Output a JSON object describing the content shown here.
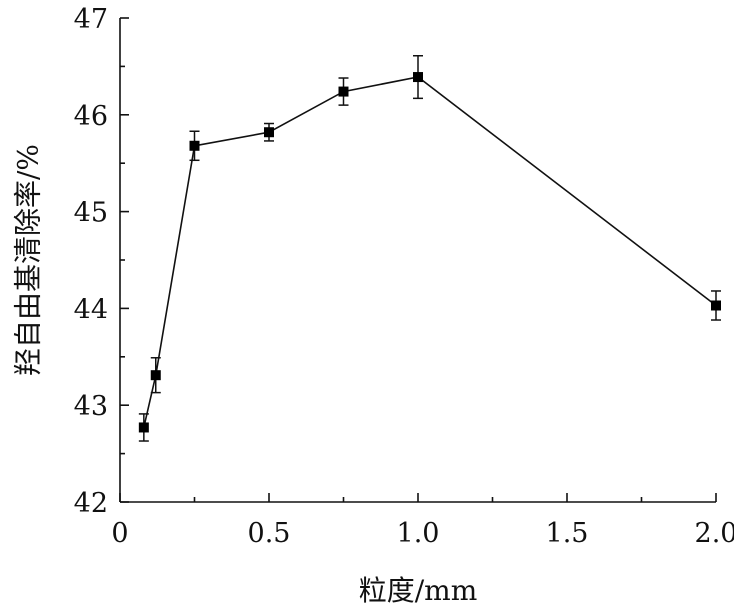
{
  "chart_data": {
    "type": "line",
    "title": "",
    "xlabel": "粒度/mm",
    "ylabel": "羟自由基清除率/%",
    "xlim": [
      0,
      2.0
    ],
    "ylim": [
      42,
      47
    ],
    "xticks": [
      0,
      0.5,
      1.0,
      1.5,
      2.0
    ],
    "xtick_labels": [
      "0",
      "0.5",
      "1.0",
      "1.5",
      "2.0"
    ],
    "yticks": [
      42,
      43,
      44,
      45,
      46,
      47
    ],
    "ytick_labels": [
      "42",
      "43",
      "44",
      "45",
      "46",
      "47"
    ],
    "grid": false,
    "legend": "none",
    "marker": "square",
    "series": [
      {
        "x": [
          0.08,
          0.12,
          0.25,
          0.5,
          0.75,
          1.0,
          2.0
        ],
        "y": [
          42.77,
          43.31,
          45.68,
          45.82,
          46.24,
          46.39,
          44.03
        ],
        "error": [
          0.14,
          0.18,
          0.15,
          0.09,
          0.14,
          0.22,
          0.15
        ]
      }
    ]
  }
}
